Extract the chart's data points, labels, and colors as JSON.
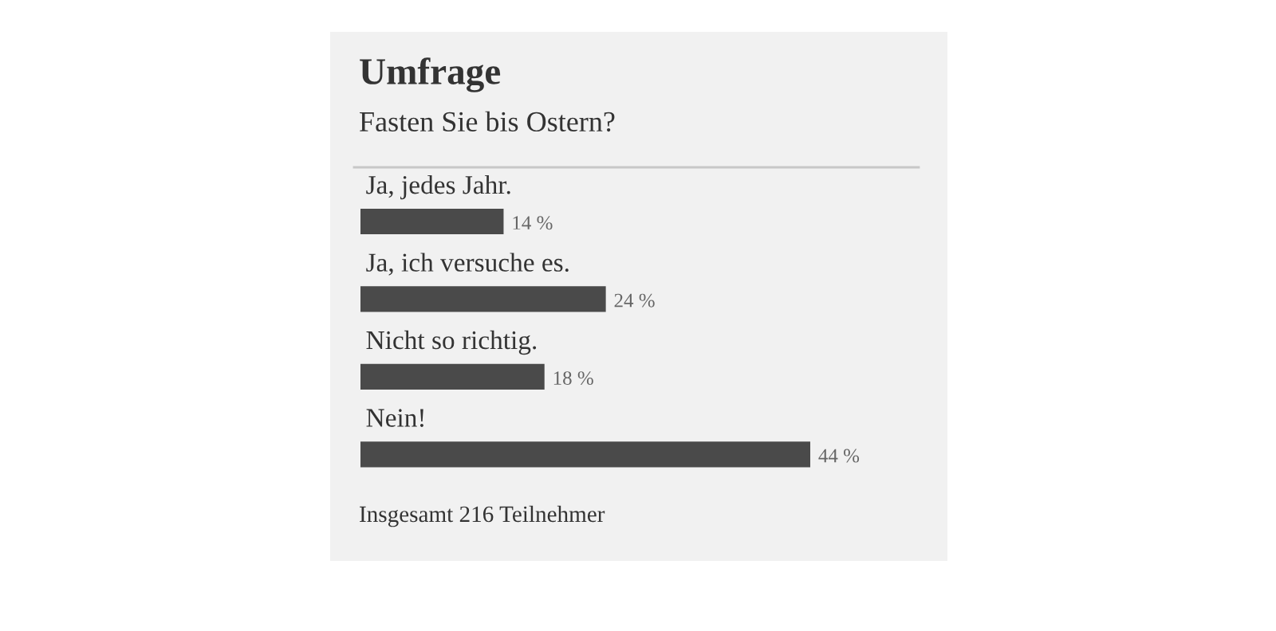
{
  "chart_data": {
    "type": "bar",
    "orientation": "horizontal",
    "title": "Umfrage",
    "subtitle": "Fasten Sie bis Ostern?",
    "categories": [
      "Ja, jedes Jahr.",
      "Ja, ich versuche es.",
      "Nicht so richtig.",
      "Nein!"
    ],
    "values": [
      14,
      24,
      18,
      44
    ],
    "value_labels": [
      "14 %",
      "24 %",
      "18 %",
      "44 %"
    ],
    "color": "#4a4a4a",
    "annotations": [
      "Insgesamt 216 Teilnehmer"
    ]
  }
}
